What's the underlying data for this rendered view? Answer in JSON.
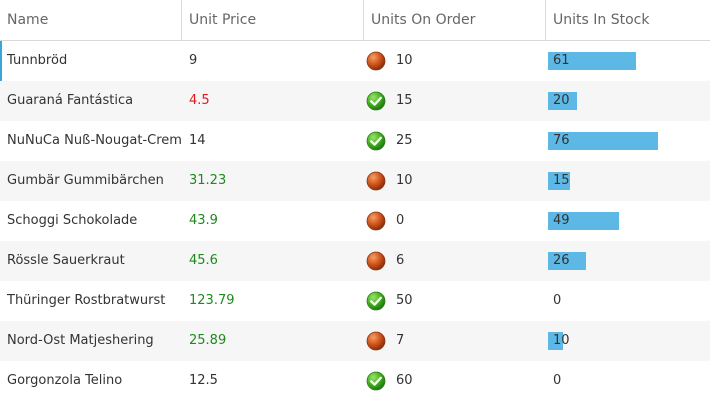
{
  "columns": [
    "Name",
    "Unit Price",
    "Units On Order",
    "Units In Stock"
  ],
  "stock_bar_max": 100,
  "colors": {
    "bar": "#5db8e6",
    "low_price": "#e11b1b",
    "high_price": "#1e8a1e",
    "selected_marker": "#3ba4d8"
  },
  "rows": [
    {
      "name": "Tunnbröd",
      "price": "9",
      "price_style": "normal",
      "order": "10",
      "order_icon": "red-ball-icon",
      "stock": "61",
      "stock_value": 61
    },
    {
      "name": "Guaraná Fantástica",
      "price": "4.5",
      "price_style": "neg",
      "order": "15",
      "order_icon": "green-check-icon",
      "stock": "20",
      "stock_value": 20
    },
    {
      "name": "NuNuCa Nuß-Nougat-Creme",
      "price": "14",
      "price_style": "normal",
      "order": "25",
      "order_icon": "green-check-icon",
      "stock": "76",
      "stock_value": 76
    },
    {
      "name": "Gumbär Gummibärchen",
      "price": "31.23",
      "price_style": "pos",
      "order": "10",
      "order_icon": "red-ball-icon",
      "stock": "15",
      "stock_value": 15
    },
    {
      "name": "Schoggi Schokolade",
      "price": "43.9",
      "price_style": "pos",
      "order": "0",
      "order_icon": "red-ball-icon",
      "stock": "49",
      "stock_value": 49
    },
    {
      "name": "Rössle Sauerkraut",
      "price": "45.6",
      "price_style": "pos",
      "order": "6",
      "order_icon": "red-ball-icon",
      "stock": "26",
      "stock_value": 26
    },
    {
      "name": "Thüringer Rostbratwurst",
      "price": "123.79",
      "price_style": "pos",
      "order": "50",
      "order_icon": "green-check-icon",
      "stock": "0",
      "stock_value": 0
    },
    {
      "name": "Nord-Ost Matjeshering",
      "price": "25.89",
      "price_style": "pos",
      "order": "7",
      "order_icon": "red-ball-icon",
      "stock": "10",
      "stock_value": 10
    },
    {
      "name": "Gorgonzola Telino",
      "price": "12.5",
      "price_style": "normal",
      "order": "60",
      "order_icon": "green-check-icon",
      "stock": "0",
      "stock_value": 0
    }
  ]
}
